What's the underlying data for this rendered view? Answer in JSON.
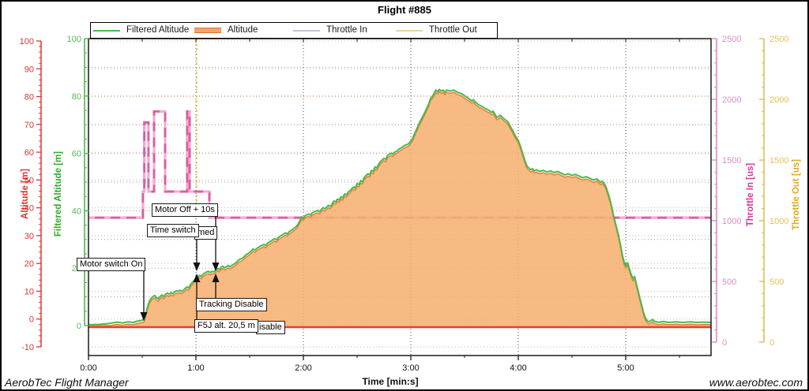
{
  "title": "Flight #885",
  "footer": {
    "left": "AerobTec Flight Manager",
    "right": "www.aerobtec.com"
  },
  "legend": [
    {
      "label": "Filtered Altitude",
      "color": "#4db84d",
      "thick": false,
      "border": "#4db84d"
    },
    {
      "label": "Altitude",
      "color": "#f4a368",
      "thick": true,
      "border": "#e0703c"
    },
    {
      "label": "Throttle In",
      "color": "#c9bfd8",
      "thick": false,
      "border": "#c9bfd8"
    },
    {
      "label": "Throttle Out",
      "color": "#e6d5a0",
      "thick": false,
      "border": "#e6d5a0"
    }
  ],
  "axes": {
    "altitude": {
      "title": "Altitude [m]",
      "color": "#dd3333",
      "min": -10,
      "max": 100,
      "major_step": 10,
      "minor_step": 2
    },
    "filtered": {
      "title": "Filtered Altitude [m]",
      "color": "#3db53d",
      "min": 0,
      "max": 100,
      "major_step": 20,
      "minor_step": 5
    },
    "throttle_in": {
      "title": "Throttle In [us]",
      "color": "#d6369e",
      "label_color": "#d98ec6",
      "min": 0,
      "max": 2500,
      "major_step": 500,
      "minor_step": 100
    },
    "throttle_out": {
      "title": "Throttle Out [us]",
      "color": "#e0a920",
      "label_color": "#e3c24f",
      "min": 0,
      "max": 2500,
      "major_step": 500,
      "minor_step": 100
    },
    "time": {
      "title": "Time [min:s]",
      "labels": [
        "0:00",
        "1:00",
        "2:00",
        "3:00",
        "4:00",
        "5:00"
      ],
      "major_step_s": 60,
      "minor_step_s": 30,
      "end_s": 347.5
    }
  },
  "annotations": [
    {
      "id": "motor-switch-on",
      "label": "Motor switch On"
    },
    {
      "id": "motor-off-10s",
      "label": "Motor Off + 10s"
    },
    {
      "id": "time-switch",
      "label": "Time switch"
    },
    {
      "id": "time-switch-hidden",
      "label": "med"
    },
    {
      "id": "tracking-disable",
      "label": "Tracking Disable"
    },
    {
      "id": "f5j-altitude",
      "label": "F5J alt. 20,5 m"
    },
    {
      "id": "tracking-disable-hidden",
      "label": "isable"
    }
  ],
  "chart_data": {
    "type": "area",
    "title": "Flight #885",
    "xlabel": "Time [min:s]",
    "x_unit": "seconds",
    "x_range": [
      0,
      347.5
    ],
    "grid": true,
    "legend_position": "top",
    "series": [
      {
        "name": "Filtered Altitude",
        "unit": "m",
        "color": "#4db84d",
        "points": [
          [
            0,
            0.3
          ],
          [
            6,
            0.4
          ],
          [
            10,
            0.6
          ],
          [
            13,
            0.9
          ],
          [
            16,
            1.2
          ],
          [
            19,
            0.9
          ],
          [
            22,
            1.3
          ],
          [
            25,
            1.1
          ],
          [
            27,
            1.5
          ],
          [
            29,
            1.7
          ],
          [
            30,
            1.9
          ],
          [
            31,
            2.0
          ],
          [
            32,
            4.0
          ],
          [
            33,
            6.5
          ],
          [
            34,
            8.5
          ],
          [
            35,
            9.5
          ],
          [
            36,
            10.1
          ],
          [
            37,
            10.5
          ],
          [
            38,
            9.7
          ],
          [
            39,
            9.3
          ],
          [
            40,
            10.1
          ],
          [
            41,
            10.7
          ],
          [
            42,
            10.1
          ],
          [
            43,
            10.9
          ],
          [
            44,
            11.3
          ],
          [
            45,
            10.9
          ],
          [
            46,
            11.5
          ],
          [
            47,
            11.1
          ],
          [
            48,
            11.7
          ],
          [
            49,
            12.1
          ],
          [
            50,
            11.9
          ],
          [
            51,
            12.3
          ],
          [
            52,
            11.9
          ],
          [
            53,
            12.3
          ],
          [
            54,
            12.9
          ],
          [
            55,
            13.5
          ],
          [
            56,
            13.1
          ],
          [
            57,
            14.3
          ],
          [
            58,
            15.1
          ],
          [
            59,
            15.7
          ],
          [
            60,
            16.5
          ],
          [
            61,
            16.9
          ],
          [
            62,
            17.5
          ],
          [
            63,
            17.1
          ],
          [
            64,
            17.9
          ],
          [
            65,
            18.3
          ],
          [
            66,
            18.7
          ],
          [
            67,
            18.9
          ],
          [
            68,
            18.5
          ],
          [
            69,
            18.9
          ],
          [
            70,
            18.7
          ],
          [
            71,
            19.3
          ],
          [
            72,
            19.9
          ],
          [
            73,
            19.5
          ],
          [
            74,
            20.3
          ],
          [
            75,
            20.7
          ],
          [
            76,
            20.1
          ],
          [
            77,
            20.5
          ],
          [
            78,
            20.9
          ],
          [
            79,
            20.5
          ],
          [
            80,
            20.9
          ],
          [
            82,
            21.7
          ],
          [
            84,
            22.9
          ],
          [
            86,
            23.5
          ],
          [
            88,
            24.7
          ],
          [
            90,
            25.5
          ],
          [
            92,
            26.7
          ],
          [
            93,
            26.3
          ],
          [
            94,
            26.9
          ],
          [
            96,
            27.7
          ],
          [
            98,
            28.3
          ],
          [
            99,
            27.9
          ],
          [
            100,
            28.7
          ],
          [
            102,
            29.5
          ],
          [
            104,
            30.3
          ],
          [
            105,
            29.9
          ],
          [
            106,
            30.7
          ],
          [
            108,
            31.5
          ],
          [
            110,
            32.3
          ],
          [
            111,
            31.9
          ],
          [
            112,
            32.7
          ],
          [
            114,
            33.5
          ],
          [
            116,
            34.5
          ],
          [
            117,
            35.3
          ],
          [
            118,
            36.5
          ],
          [
            119,
            37.9
          ],
          [
            120,
            37.5
          ],
          [
            121,
            38.3
          ],
          [
            123,
            38.9
          ],
          [
            124,
            38.5
          ],
          [
            125,
            39.3
          ],
          [
            127,
            39.9
          ],
          [
            128,
            40.1
          ],
          [
            129,
            39.7
          ],
          [
            130,
            40.5
          ],
          [
            131,
            41.1
          ],
          [
            132,
            40.7
          ],
          [
            133,
            41.3
          ],
          [
            134,
            41.9
          ],
          [
            135,
            41.5
          ],
          [
            136,
            42.3
          ],
          [
            137,
            43.4
          ],
          [
            138,
            43.1
          ],
          [
            139,
            44.1
          ],
          [
            140,
            43.7
          ],
          [
            141,
            44.9
          ],
          [
            142,
            44.5
          ],
          [
            143,
            45.9
          ],
          [
            144,
            45.5
          ],
          [
            145,
            46.5
          ],
          [
            146,
            47.0
          ],
          [
            147,
            47.7
          ],
          [
            148,
            48.3
          ],
          [
            149,
            47.9
          ],
          [
            150,
            49.5
          ],
          [
            151,
            49.1
          ],
          [
            152,
            50.5
          ],
          [
            153,
            50.1
          ],
          [
            154,
            51.6
          ],
          [
            155,
            52.3
          ],
          [
            156,
            52.9
          ],
          [
            157,
            52.5
          ],
          [
            158,
            54.1
          ],
          [
            159,
            53.7
          ],
          [
            160,
            55.3
          ],
          [
            161,
            54.9
          ],
          [
            162,
            56.3
          ],
          [
            163,
            57.1
          ],
          [
            164,
            57.7
          ],
          [
            165,
            58.3
          ],
          [
            166,
            57.9
          ],
          [
            167,
            59.3
          ],
          [
            168,
            59.7
          ],
          [
            169,
            60.1
          ],
          [
            170,
            59.7
          ],
          [
            171,
            60.5
          ],
          [
            172,
            60.7
          ],
          [
            173,
            61.3
          ],
          [
            174,
            61.7
          ],
          [
            175,
            62.1
          ],
          [
            176,
            62.5
          ],
          [
            177,
            62.9
          ],
          [
            178,
            63.1
          ],
          [
            179,
            63.5
          ],
          [
            180,
            64.3
          ],
          [
            181,
            65.3
          ],
          [
            182,
            66.7
          ],
          [
            183,
            68.1
          ],
          [
            184,
            69.5
          ],
          [
            185,
            70.9
          ],
          [
            186,
            72.1
          ],
          [
            187,
            73.3
          ],
          [
            188,
            74.5
          ],
          [
            189,
            75.9
          ],
          [
            190,
            77.3
          ],
          [
            191,
            79.1
          ],
          [
            192,
            79.9
          ],
          [
            193,
            80.9
          ],
          [
            194,
            82.1
          ],
          [
            195,
            81.5
          ],
          [
            196,
            82.3
          ],
          [
            197,
            81.7
          ],
          [
            198,
            82.1
          ],
          [
            199,
            81.3
          ],
          [
            200,
            82.1
          ],
          [
            202,
            81.7
          ],
          [
            204,
            82.1
          ],
          [
            206,
            81.3
          ],
          [
            208,
            80.9
          ],
          [
            210,
            80.1
          ],
          [
            212,
            79.3
          ],
          [
            214,
            78.3
          ],
          [
            215,
            78.7
          ],
          [
            216,
            77.9
          ],
          [
            218,
            76.9
          ],
          [
            220,
            76.3
          ],
          [
            222,
            75.5
          ],
          [
            224,
            74.9
          ],
          [
            225,
            74.3
          ],
          [
            226,
            74.7
          ],
          [
            228,
            72.5
          ],
          [
            229,
            72.9
          ],
          [
            230,
            73.3
          ],
          [
            232,
            72.1
          ],
          [
            234,
            71.1
          ],
          [
            235,
            70.1
          ],
          [
            236,
            68.9
          ],
          [
            237,
            67.9
          ],
          [
            238,
            66.5
          ],
          [
            239,
            65.5
          ],
          [
            240,
            64.5
          ],
          [
            241,
            62.9
          ],
          [
            242,
            60.9
          ],
          [
            243,
            58.9
          ],
          [
            244,
            56.9
          ],
          [
            245,
            55.4
          ],
          [
            246,
            54.9
          ],
          [
            247,
            54.3
          ],
          [
            248,
            54.7
          ],
          [
            249,
            53.9
          ],
          [
            250,
            54.3
          ],
          [
            252,
            53.7
          ],
          [
            254,
            54.1
          ],
          [
            256,
            53.5
          ],
          [
            258,
            53.9
          ],
          [
            260,
            53.3
          ],
          [
            262,
            53.7
          ],
          [
            264,
            53.1
          ],
          [
            266,
            52.5
          ],
          [
            268,
            52.9
          ],
          [
            270,
            52.3
          ],
          [
            272,
            52.7
          ],
          [
            274,
            52.1
          ],
          [
            276,
            51.5
          ],
          [
            278,
            51.9
          ],
          [
            280,
            51.3
          ],
          [
            282,
            50.7
          ],
          [
            284,
            51.1
          ],
          [
            285,
            50.5
          ],
          [
            286,
            49.9
          ],
          [
            287,
            50.3
          ],
          [
            288,
            49.5
          ],
          [
            289,
            48.3
          ],
          [
            290,
            46.4
          ],
          [
            291,
            44.4
          ],
          [
            292,
            41.9
          ],
          [
            293,
            38.9
          ],
          [
            294,
            36.4
          ],
          [
            295,
            33.9
          ],
          [
            296,
            31.4
          ],
          [
            297,
            28.4
          ],
          [
            298,
            24.9
          ],
          [
            299,
            22.4
          ],
          [
            300,
            20.9
          ],
          [
            301,
            21.9
          ],
          [
            302,
            19.9
          ],
          [
            303,
            17.9
          ],
          [
            304,
            16.4
          ],
          [
            305,
            17.1
          ],
          [
            306,
            14.4
          ],
          [
            307,
            11.9
          ],
          [
            308,
            9.4
          ],
          [
            309,
            6.9
          ],
          [
            310,
            4.4
          ],
          [
            311,
            2.7
          ],
          [
            312,
            1.7
          ],
          [
            313,
            1.3
          ],
          [
            314,
            1.7
          ],
          [
            315,
            2.1
          ],
          [
            316,
            1.5
          ],
          [
            318,
            1.1
          ],
          [
            321,
            1.4
          ],
          [
            324,
            1.1
          ],
          [
            328,
            1.3
          ],
          [
            332,
            1.1
          ],
          [
            336,
            1.3
          ],
          [
            340,
            1.1
          ],
          [
            344,
            1.2
          ],
          [
            347.5,
            1.1
          ]
        ]
      },
      {
        "name": "Altitude",
        "unit": "m",
        "color": "#e0813f",
        "fill": "#f7b072",
        "derived_from": "Filtered Altitude",
        "offset_m": -0.8
      },
      {
        "name": "Throttle In",
        "unit": "us",
        "color": "#d75fa5",
        "points": [
          [
            0,
            1025
          ],
          [
            30.4,
            1025
          ],
          [
            30.4,
            1240
          ],
          [
            31.2,
            1240
          ],
          [
            31.2,
            1810
          ],
          [
            33.5,
            1810
          ],
          [
            33.5,
            1240
          ],
          [
            36.6,
            1240
          ],
          [
            36.6,
            1900
          ],
          [
            42.8,
            1900
          ],
          [
            42.8,
            1240
          ],
          [
            55.1,
            1240
          ],
          [
            55.1,
            1900
          ],
          [
            56.5,
            1900
          ],
          [
            56.5,
            1240
          ],
          [
            67.5,
            1240
          ],
          [
            67.5,
            1025
          ],
          [
            347.5,
            1025
          ]
        ]
      },
      {
        "name": "Throttle Out",
        "unit": "us",
        "color": "#edbe4a",
        "event_marker": {
          "t": 60.4,
          "from_us": 2500,
          "to_us": 1025,
          "style": "dashed-vertical"
        }
      }
    ],
    "reference_lines": [
      {
        "name": "zero-altitude-line",
        "color": "#e8402c",
        "value_m": 0
      }
    ],
    "peak_altitude_m": 82.3,
    "f5j_altitude_m": 20.5
  }
}
